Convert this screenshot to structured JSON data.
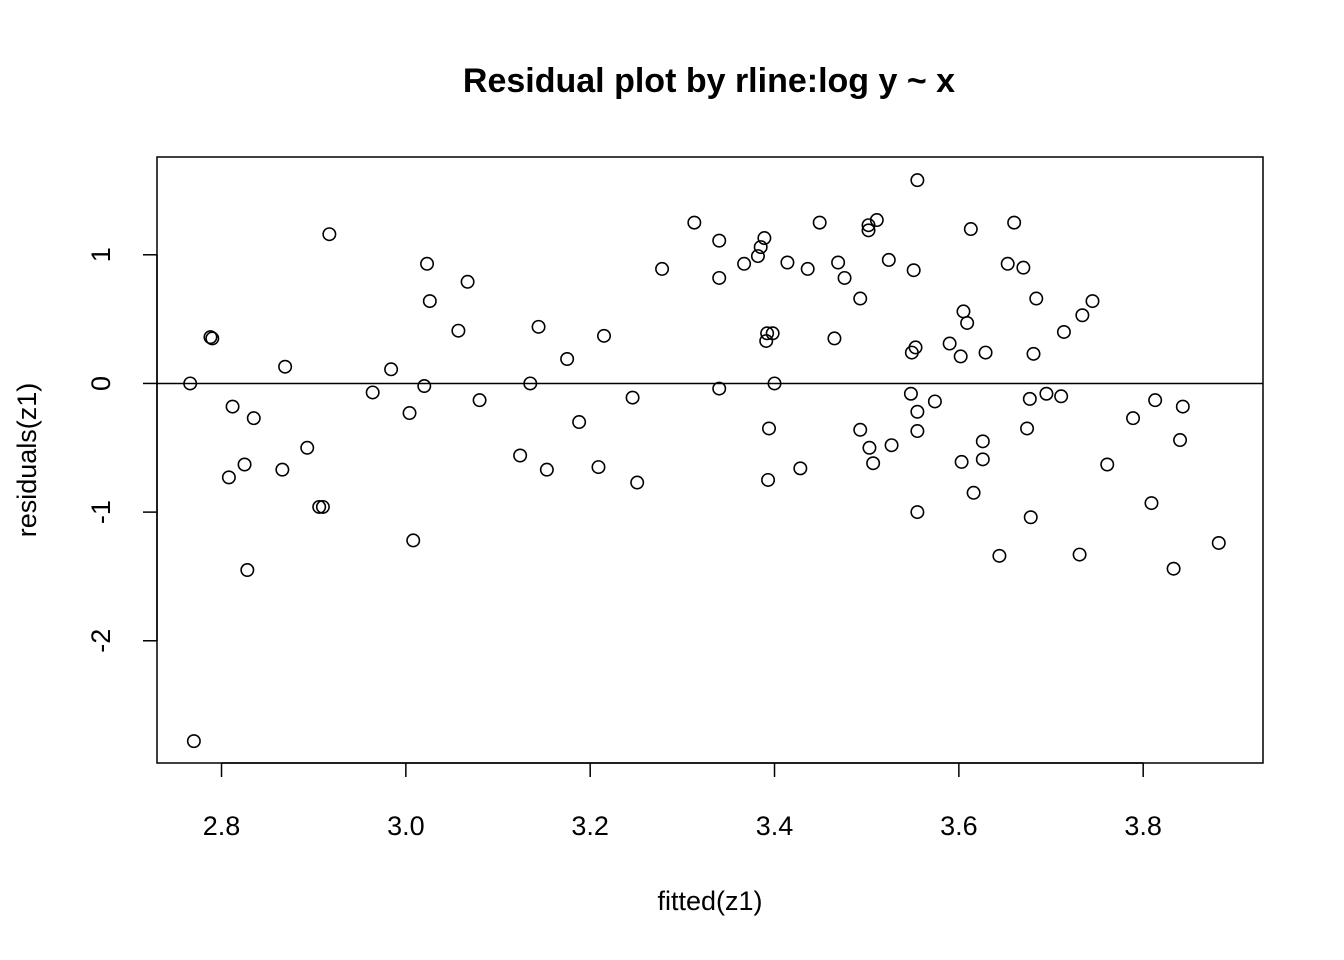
{
  "chart_data": {
    "type": "scatter",
    "title": "Residual plot by rline:log y ~ x",
    "xlabel": "fitted(z1)",
    "ylabel": "residuals(z1)",
    "xlim": [
      2.73,
      3.93
    ],
    "ylim": [
      -2.95,
      1.76
    ],
    "x_ticks": [
      2.8,
      3.0,
      3.2,
      3.4,
      3.6,
      3.8
    ],
    "x_tick_labels": [
      "2.8",
      "3.0",
      "3.2",
      "3.4",
      "3.6",
      "3.8"
    ],
    "y_ticks": [
      -2,
      -1,
      0,
      1
    ],
    "y_tick_labels": [
      "-2",
      "-1",
      "0",
      "1"
    ],
    "reference_line": 0,
    "grid": false,
    "marker": "open-circle",
    "points": [
      [
        2.766,
        0.0
      ],
      [
        2.77,
        -2.78
      ],
      [
        2.788,
        0.36
      ],
      [
        2.79,
        0.35
      ],
      [
        2.808,
        -0.73
      ],
      [
        2.812,
        -0.18
      ],
      [
        2.825,
        -0.63
      ],
      [
        2.828,
        -1.45
      ],
      [
        2.835,
        -0.27
      ],
      [
        2.866,
        -0.67
      ],
      [
        2.869,
        0.13
      ],
      [
        2.893,
        -0.5
      ],
      [
        2.906,
        -0.96
      ],
      [
        2.91,
        -0.96
      ],
      [
        2.917,
        1.16
      ],
      [
        2.964,
        -0.07
      ],
      [
        2.984,
        0.11
      ],
      [
        3.004,
        -0.23
      ],
      [
        3.008,
        -1.22
      ],
      [
        3.02,
        -0.02
      ],
      [
        3.023,
        0.93
      ],
      [
        3.026,
        0.64
      ],
      [
        3.057,
        0.41
      ],
      [
        3.067,
        0.79
      ],
      [
        3.08,
        -0.13
      ],
      [
        3.124,
        -0.56
      ],
      [
        3.135,
        0.0
      ],
      [
        3.144,
        0.44
      ],
      [
        3.153,
        -0.67
      ],
      [
        3.175,
        0.19
      ],
      [
        3.188,
        -0.3
      ],
      [
        3.209,
        -0.65
      ],
      [
        3.215,
        0.37
      ],
      [
        3.246,
        -0.11
      ],
      [
        3.251,
        -0.77
      ],
      [
        3.278,
        0.89
      ],
      [
        3.313,
        1.25
      ],
      [
        3.34,
        -0.04
      ],
      [
        3.34,
        0.82
      ],
      [
        3.34,
        1.11
      ],
      [
        3.367,
        0.93
      ],
      [
        3.382,
        0.99
      ],
      [
        3.385,
        1.06
      ],
      [
        3.389,
        1.13
      ],
      [
        3.391,
        0.33
      ],
      [
        3.392,
        0.39
      ],
      [
        3.393,
        -0.75
      ],
      [
        3.394,
        -0.35
      ],
      [
        3.398,
        0.39
      ],
      [
        3.4,
        0.0
      ],
      [
        3.414,
        0.94
      ],
      [
        3.428,
        -0.66
      ],
      [
        3.436,
        0.89
      ],
      [
        3.449,
        1.25
      ],
      [
        3.465,
        0.35
      ],
      [
        3.469,
        0.94
      ],
      [
        3.476,
        0.82
      ],
      [
        3.493,
        0.66
      ],
      [
        3.493,
        -0.36
      ],
      [
        3.502,
        1.19
      ],
      [
        3.502,
        1.23
      ],
      [
        3.503,
        -0.5
      ],
      [
        3.507,
        -0.62
      ],
      [
        3.511,
        1.27
      ],
      [
        3.524,
        0.96
      ],
      [
        3.527,
        -0.48
      ],
      [
        3.548,
        -0.08
      ],
      [
        3.549,
        0.24
      ],
      [
        3.551,
        0.88
      ],
      [
        3.553,
        0.28
      ],
      [
        3.555,
        -0.22
      ],
      [
        3.555,
        -0.37
      ],
      [
        3.555,
        1.58
      ],
      [
        3.555,
        -1.0
      ],
      [
        3.574,
        -0.14
      ],
      [
        3.59,
        0.31
      ],
      [
        3.602,
        0.21
      ],
      [
        3.603,
        -0.61
      ],
      [
        3.605,
        0.56
      ],
      [
        3.609,
        0.47
      ],
      [
        3.613,
        1.2
      ],
      [
        3.616,
        -0.85
      ],
      [
        3.626,
        -0.59
      ],
      [
        3.626,
        -0.45
      ],
      [
        3.629,
        0.24
      ],
      [
        3.644,
        -1.34
      ],
      [
        3.653,
        0.93
      ],
      [
        3.66,
        1.25
      ],
      [
        3.67,
        0.9
      ],
      [
        3.674,
        -0.35
      ],
      [
        3.677,
        -0.12
      ],
      [
        3.678,
        -1.04
      ],
      [
        3.681,
        0.23
      ],
      [
        3.684,
        0.66
      ],
      [
        3.695,
        -0.08
      ],
      [
        3.711,
        -0.1
      ],
      [
        3.714,
        0.4
      ],
      [
        3.731,
        -1.33
      ],
      [
        3.734,
        0.53
      ],
      [
        3.745,
        0.64
      ],
      [
        3.761,
        -0.63
      ],
      [
        3.789,
        -0.27
      ],
      [
        3.809,
        -0.93
      ],
      [
        3.813,
        -0.13
      ],
      [
        3.833,
        -1.44
      ],
      [
        3.84,
        -0.44
      ],
      [
        3.843,
        -0.18
      ],
      [
        3.882,
        -1.24
      ]
    ]
  }
}
